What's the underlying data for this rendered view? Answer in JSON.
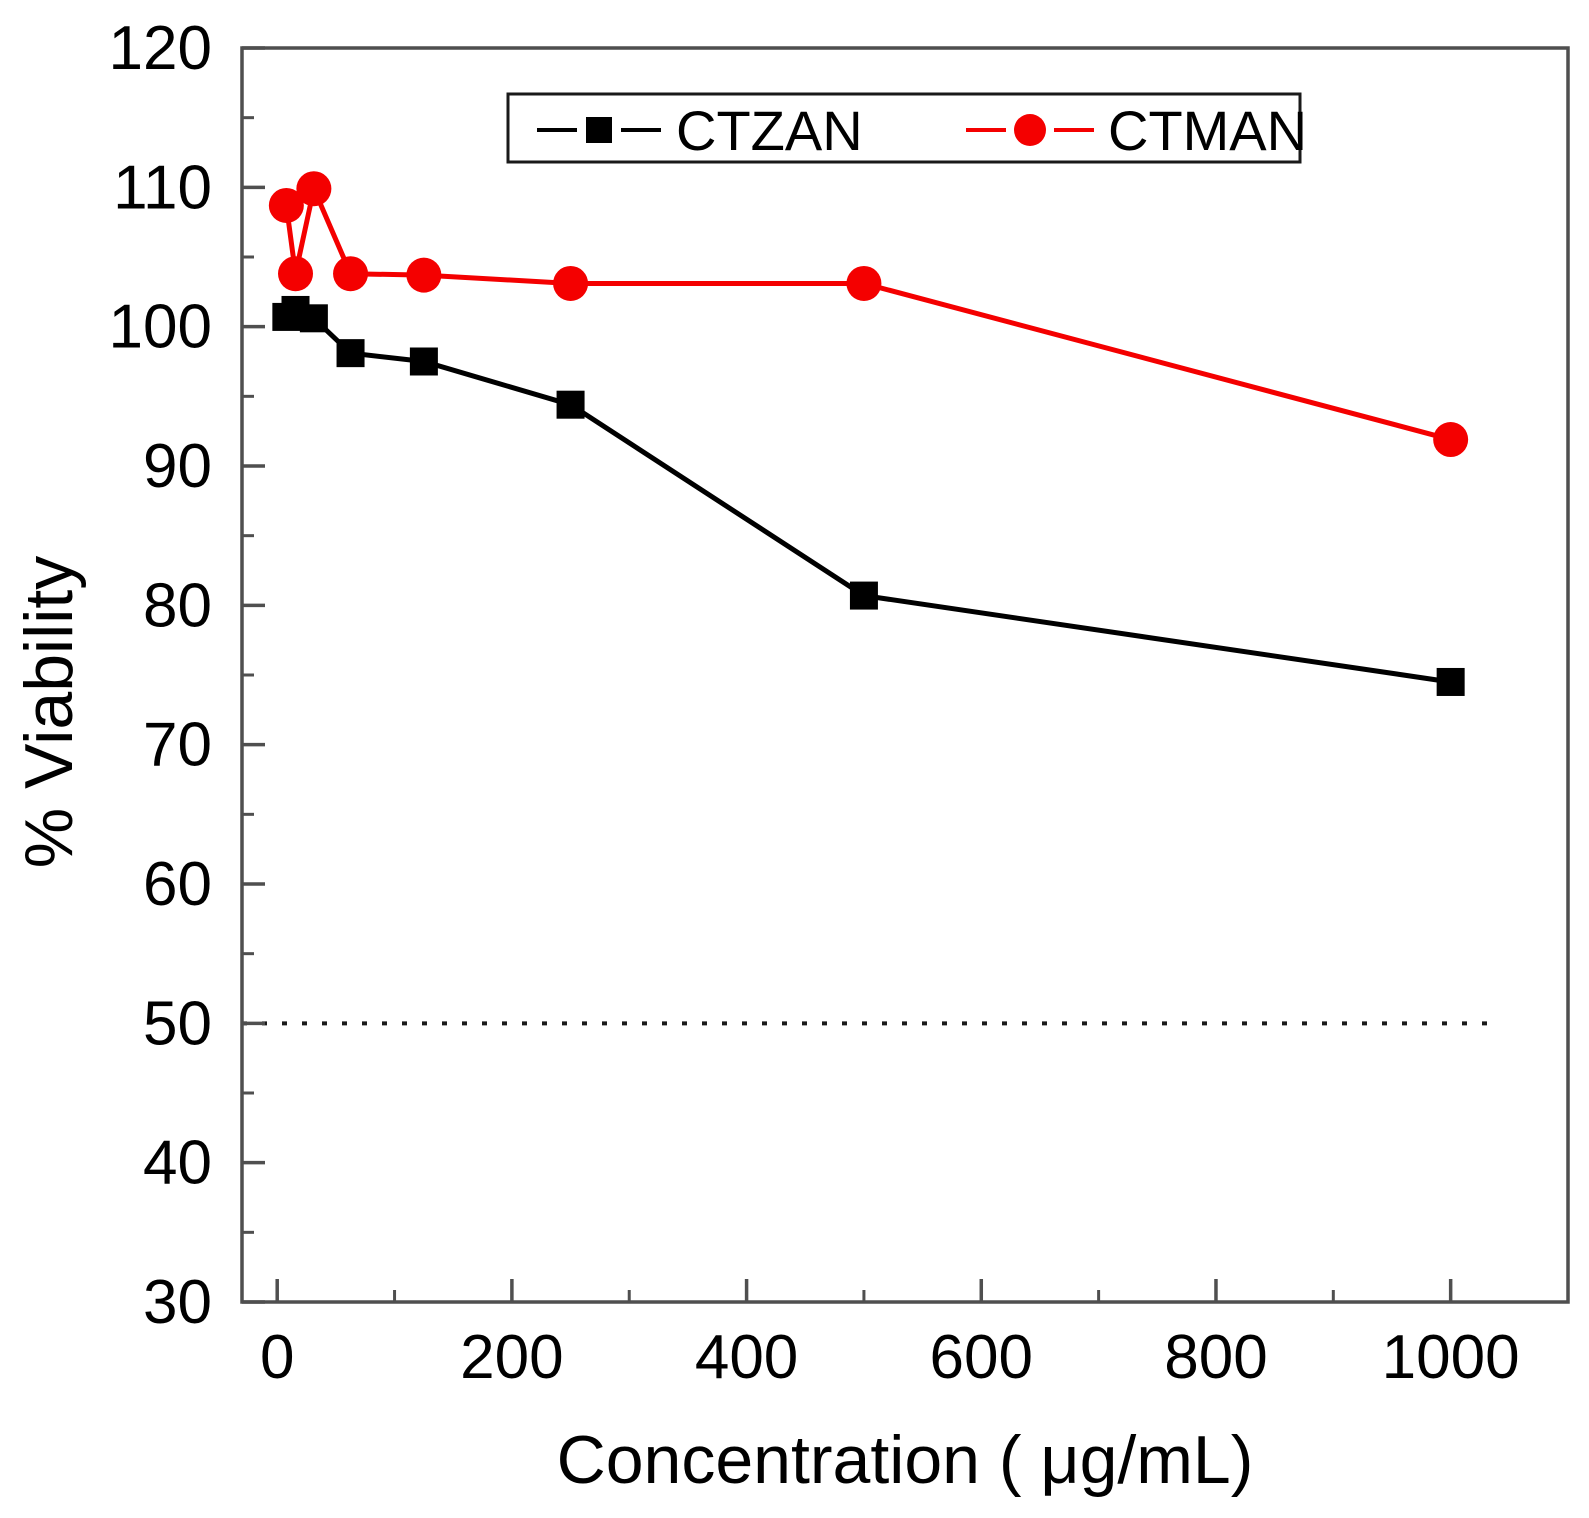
{
  "chart_data": {
    "type": "line",
    "title": "",
    "xlabel": "Concentration ( μg/mL)",
    "ylabel": "% Viability",
    "x": [
      7.8,
      15.6,
      31.25,
      62.5,
      125,
      250,
      500,
      1000
    ],
    "series": [
      {
        "name": "CTZAN",
        "color": "#000000",
        "marker": "square",
        "values": [
          100.7,
          101.2,
          100.6,
          98.1,
          97.5,
          94.4,
          80.7,
          74.5
        ]
      },
      {
        "name": "CTMAN",
        "color": "#f40000",
        "marker": "circle",
        "values": [
          108.7,
          103.8,
          109.9,
          103.8,
          103.7,
          103.1,
          103.1,
          91.9
        ]
      }
    ],
    "xlim": [
      -30,
      1100
    ],
    "ylim": [
      30,
      120
    ],
    "x_major_ticks": [
      0,
      200,
      400,
      600,
      800,
      1000
    ],
    "x_minor_ticks": [
      100,
      300,
      500,
      700,
      900
    ],
    "y_major_ticks": [
      30,
      40,
      50,
      60,
      70,
      80,
      90,
      100,
      110,
      120
    ],
    "y_minor_ticks": [
      35,
      45,
      55,
      65,
      75,
      85,
      95,
      105,
      115
    ],
    "reference_line": {
      "y": 50,
      "style": "dotted",
      "x_range": [
        -30,
        1042
      ]
    },
    "legend": {
      "position": "top-center",
      "entries": [
        "CTZAN",
        "CTMAN"
      ]
    },
    "grid": false,
    "frame_color": "#4f4f4f",
    "text_color": "#000000"
  }
}
